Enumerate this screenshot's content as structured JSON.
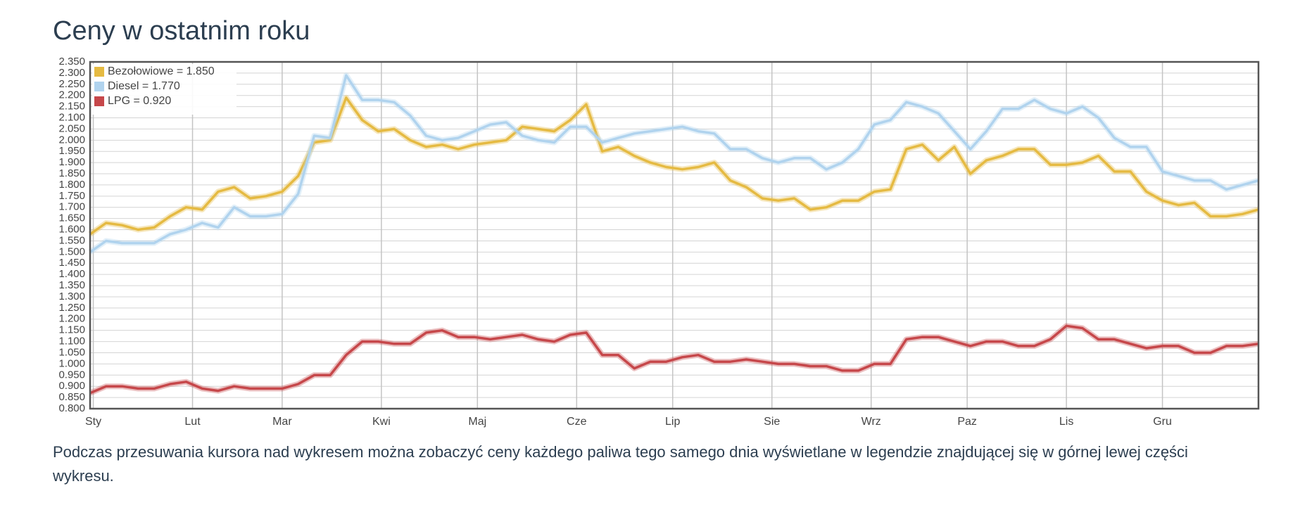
{
  "chart_data": {
    "type": "line",
    "title": "Ceny w ostatnim roku",
    "x": [
      0,
      5,
      10,
      15,
      20,
      25,
      30,
      35,
      40,
      45,
      50,
      55,
      60,
      65,
      70,
      75,
      80,
      85,
      90,
      95,
      100,
      105,
      110,
      115,
      120,
      125,
      130,
      135,
      140,
      145,
      150,
      155,
      160,
      165,
      170,
      175,
      180,
      185,
      190,
      195,
      200,
      205,
      210,
      215,
      220,
      225,
      230,
      235,
      240,
      245,
      250,
      255,
      260,
      265,
      270,
      275,
      280,
      285,
      290,
      295,
      300,
      305,
      310,
      315,
      320,
      325,
      330,
      335,
      340,
      345,
      350,
      355,
      360,
      365
    ],
    "xlim": [
      0,
      365
    ],
    "xticks": [
      {
        "value": 1,
        "label": "Sty"
      },
      {
        "value": 32,
        "label": "Lut"
      },
      {
        "value": 60,
        "label": "Mar"
      },
      {
        "value": 91,
        "label": "Kwi"
      },
      {
        "value": 121,
        "label": "Maj"
      },
      {
        "value": 152,
        "label": "Cze"
      },
      {
        "value": 182,
        "label": "Lip"
      },
      {
        "value": 213,
        "label": "Sie"
      },
      {
        "value": 244,
        "label": "Wrz"
      },
      {
        "value": 274,
        "label": "Paz"
      },
      {
        "value": 305,
        "label": "Lis"
      },
      {
        "value": 335,
        "label": "Gru"
      }
    ],
    "ylim": [
      0.8,
      2.35
    ],
    "yticks": [
      {
        "value": 0.8,
        "label": "0.800"
      },
      {
        "value": 0.85,
        "label": "0.850"
      },
      {
        "value": 0.9,
        "label": "0.900"
      },
      {
        "value": 0.95,
        "label": "0.950"
      },
      {
        "value": 1.0,
        "label": "1.000"
      },
      {
        "value": 1.05,
        "label": "1.050"
      },
      {
        "value": 1.1,
        "label": "1.100"
      },
      {
        "value": 1.15,
        "label": "1.150"
      },
      {
        "value": 1.2,
        "label": "1.200"
      },
      {
        "value": 1.25,
        "label": "1.250"
      },
      {
        "value": 1.3,
        "label": "1.300"
      },
      {
        "value": 1.35,
        "label": "1.350"
      },
      {
        "value": 1.4,
        "label": "1.400"
      },
      {
        "value": 1.45,
        "label": "1.450"
      },
      {
        "value": 1.5,
        "label": "1.500"
      },
      {
        "value": 1.55,
        "label": "1.550"
      },
      {
        "value": 1.6,
        "label": "1.600"
      },
      {
        "value": 1.65,
        "label": "1.650"
      },
      {
        "value": 1.7,
        "label": "1.700"
      },
      {
        "value": 1.75,
        "label": "1.750"
      },
      {
        "value": 1.8,
        "label": "1.800"
      },
      {
        "value": 1.85,
        "label": "1.850"
      },
      {
        "value": 1.9,
        "label": "1.900"
      },
      {
        "value": 1.95,
        "label": "1.950"
      },
      {
        "value": 2.0,
        "label": "2.000"
      },
      {
        "value": 2.05,
        "label": "2.050"
      },
      {
        "value": 2.1,
        "label": "2.100"
      },
      {
        "value": 2.15,
        "label": "2.150"
      },
      {
        "value": 2.2,
        "label": "2.200"
      },
      {
        "value": 2.25,
        "label": "2.250"
      },
      {
        "value": 2.3,
        "label": "2.300"
      },
      {
        "value": 2.35,
        "label": "2.350"
      }
    ],
    "grid": true,
    "legend": "upper-left",
    "series": [
      {
        "name": "Bezołowiowe = 1.850",
        "color": "#e5ba42",
        "values": [
          1.58,
          1.63,
          1.62,
          1.6,
          1.61,
          1.66,
          1.7,
          1.69,
          1.77,
          1.79,
          1.74,
          1.75,
          1.77,
          1.84,
          1.99,
          2.0,
          2.19,
          2.09,
          2.04,
          2.05,
          2.0,
          1.97,
          1.98,
          1.96,
          1.98,
          1.99,
          2.0,
          2.06,
          2.05,
          2.04,
          2.09,
          2.16,
          1.95,
          1.97,
          1.93,
          1.9,
          1.88,
          1.87,
          1.88,
          1.9,
          1.82,
          1.79,
          1.74,
          1.73,
          1.74,
          1.69,
          1.7,
          1.73,
          1.73,
          1.77,
          1.78,
          1.96,
          1.98,
          1.91,
          1.97,
          1.85,
          1.91,
          1.93,
          1.96,
          1.96,
          1.89,
          1.89,
          1.9,
          1.93,
          1.86,
          1.86,
          1.77,
          1.73,
          1.71,
          1.72,
          1.66,
          1.66,
          1.67,
          1.69
        ]
      },
      {
        "name": "Diesel = 1.770",
        "color": "#b0d3ee",
        "values": [
          1.5,
          1.55,
          1.54,
          1.54,
          1.54,
          1.58,
          1.6,
          1.63,
          1.61,
          1.7,
          1.66,
          1.66,
          1.67,
          1.76,
          2.02,
          2.01,
          2.29,
          2.18,
          2.18,
          2.17,
          2.11,
          2.02,
          2.0,
          2.01,
          2.04,
          2.07,
          2.08,
          2.02,
          2.0,
          1.99,
          2.06,
          2.06,
          1.99,
          2.01,
          2.03,
          2.04,
          2.05,
          2.06,
          2.04,
          2.03,
          1.96,
          1.96,
          1.92,
          1.9,
          1.92,
          1.92,
          1.87,
          1.9,
          1.96,
          2.07,
          2.09,
          2.17,
          2.15,
          2.12,
          2.04,
          1.96,
          2.04,
          2.14,
          2.14,
          2.18,
          2.14,
          2.12,
          2.15,
          2.1,
          2.01,
          1.97,
          1.97,
          1.86,
          1.84,
          1.82,
          1.82,
          1.78,
          1.8,
          1.82
        ]
      },
      {
        "name": "LPG = 0.920",
        "color": "#c6474a",
        "values": [
          0.87,
          0.9,
          0.9,
          0.89,
          0.89,
          0.91,
          0.92,
          0.89,
          0.88,
          0.9,
          0.89,
          0.89,
          0.89,
          0.91,
          0.95,
          0.95,
          1.04,
          1.1,
          1.1,
          1.09,
          1.09,
          1.14,
          1.15,
          1.12,
          1.12,
          1.11,
          1.12,
          1.13,
          1.11,
          1.1,
          1.13,
          1.14,
          1.04,
          1.04,
          0.98,
          1.01,
          1.01,
          1.03,
          1.04,
          1.01,
          1.01,
          1.02,
          1.01,
          1.0,
          1.0,
          0.99,
          0.99,
          0.97,
          0.97,
          1.0,
          1.0,
          1.11,
          1.12,
          1.12,
          1.1,
          1.08,
          1.1,
          1.1,
          1.08,
          1.08,
          1.11,
          1.17,
          1.16,
          1.11,
          1.11,
          1.09,
          1.07,
          1.08,
          1.08,
          1.05,
          1.05,
          1.08,
          1.08,
          1.09
        ]
      }
    ]
  },
  "description": "Podczas przesuwania kursora nad wykresem można zobaczyć ceny każdego paliwa tego samego dnia wyświetlane w legendzie znajdującej się w górnej lewej części wykresu."
}
